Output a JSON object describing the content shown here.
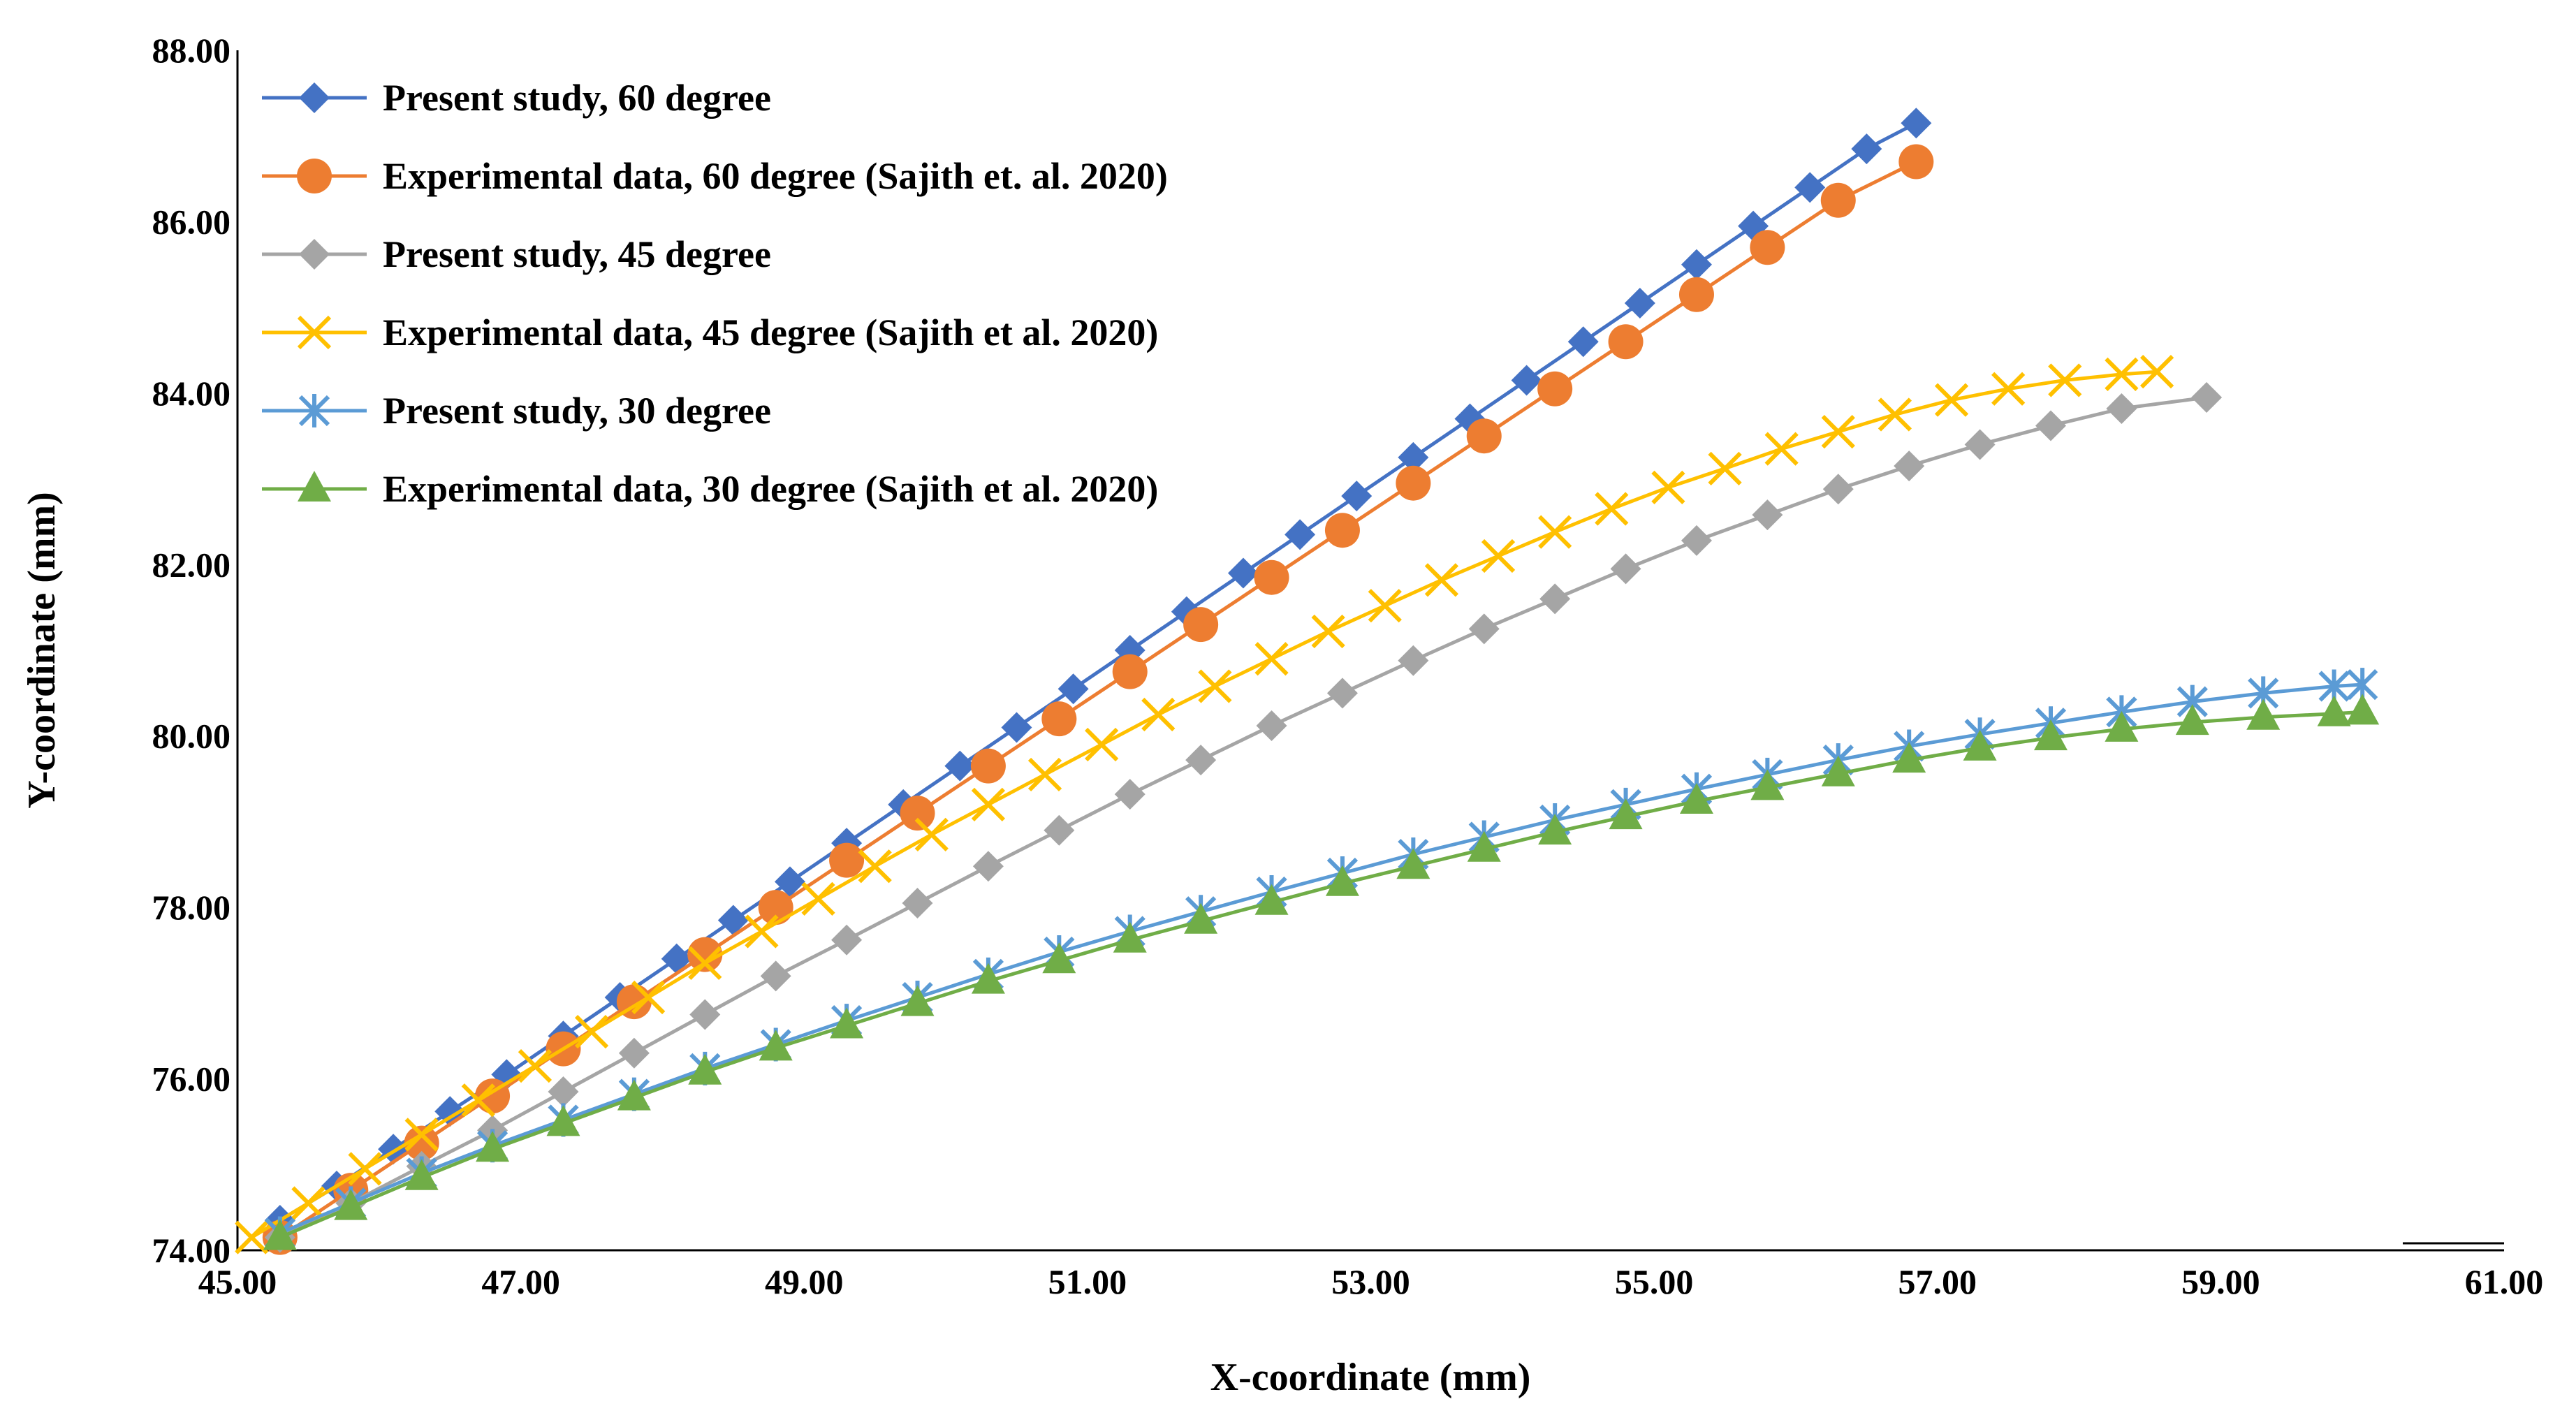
{
  "chart_data": {
    "type": "line",
    "title": "",
    "xlabel": "X-coordinate (mm)",
    "ylabel": "Y-coordinate (mm)",
    "xlim": [
      45,
      61
    ],
    "ylim": [
      74,
      88
    ],
    "xticks": [
      "45.00",
      "47.00",
      "49.00",
      "51.00",
      "53.00",
      "55.00",
      "57.00",
      "59.00",
      "61.00"
    ],
    "yticks": [
      "74.00",
      "76.00",
      "78.00",
      "80.00",
      "82.00",
      "84.00",
      "86.00",
      "88.00"
    ],
    "legend_position": "top-left",
    "grid": false,
    "series": [
      {
        "name": "Present study, 60 degree",
        "color": "#4472C4",
        "marker": "diamond",
        "x": [
          45.3,
          45.7,
          46.1,
          46.5,
          46.9,
          47.3,
          47.7,
          48.1,
          48.5,
          48.9,
          49.3,
          49.7,
          50.1,
          50.5,
          50.9,
          51.3,
          51.7,
          52.1,
          52.5,
          52.9,
          53.3,
          53.7,
          54.1,
          54.5,
          54.9,
          55.3,
          55.7,
          56.1,
          56.5,
          56.85
        ],
        "y": [
          74.35,
          74.75,
          75.18,
          75.62,
          76.05,
          76.5,
          76.95,
          77.4,
          77.85,
          78.3,
          78.75,
          79.2,
          79.65,
          80.1,
          80.55,
          81.0,
          81.45,
          81.9,
          82.35,
          82.8,
          83.25,
          83.7,
          84.15,
          84.6,
          85.05,
          85.5,
          85.95,
          86.4,
          86.85,
          87.15
        ]
      },
      {
        "name": "Experimental data, 60 degree (Sajith et. al. 2020)",
        "color": "#ED7D31",
        "marker": "circle",
        "x": [
          45.3,
          45.8,
          46.3,
          46.8,
          47.3,
          47.8,
          48.3,
          48.8,
          49.3,
          49.8,
          50.3,
          50.8,
          51.3,
          51.8,
          52.3,
          52.8,
          53.3,
          53.8,
          54.3,
          54.8,
          55.3,
          55.8,
          56.3,
          56.85
        ],
        "y": [
          74.15,
          74.7,
          75.25,
          75.8,
          76.35,
          76.9,
          77.45,
          78.0,
          78.55,
          79.1,
          79.65,
          80.2,
          80.75,
          81.3,
          81.85,
          82.4,
          82.95,
          83.5,
          84.05,
          84.6,
          85.15,
          85.7,
          86.25,
          86.7
        ]
      },
      {
        "name": "Present study, 45 degree",
        "color": "#A5A5A5",
        "marker": "diamond",
        "x": [
          45.3,
          45.8,
          46.3,
          46.8,
          47.3,
          47.8,
          48.3,
          48.8,
          49.3,
          49.8,
          50.3,
          50.8,
          51.3,
          51.8,
          52.3,
          52.8,
          53.3,
          53.8,
          54.3,
          54.8,
          55.3,
          55.8,
          56.3,
          56.8,
          57.3,
          57.8,
          58.3,
          58.9
        ],
        "y": [
          74.15,
          74.55,
          74.98,
          75.4,
          75.85,
          76.3,
          76.75,
          77.2,
          77.62,
          78.05,
          78.48,
          78.9,
          79.32,
          79.72,
          80.12,
          80.5,
          80.88,
          81.25,
          81.6,
          81.95,
          82.28,
          82.58,
          82.88,
          83.15,
          83.4,
          83.62,
          83.82,
          83.95
        ]
      },
      {
        "name": "Experimental data, 45 degree (Sajith et al. 2020)",
        "color": "#FFC000",
        "marker": "x",
        "x": [
          45.1,
          45.5,
          45.9,
          46.3,
          46.7,
          47.1,
          47.5,
          47.9,
          48.3,
          48.7,
          49.1,
          49.5,
          49.9,
          50.3,
          50.7,
          51.1,
          51.5,
          51.9,
          52.3,
          52.7,
          53.1,
          53.5,
          53.9,
          54.3,
          54.7,
          55.1,
          55.5,
          55.9,
          56.3,
          56.7,
          57.1,
          57.5,
          57.9,
          58.3,
          58.55
        ],
        "y": [
          74.15,
          74.55,
          74.95,
          75.35,
          75.75,
          76.15,
          76.55,
          76.95,
          77.35,
          77.72,
          78.1,
          78.48,
          78.85,
          79.2,
          79.55,
          79.9,
          80.25,
          80.58,
          80.9,
          81.22,
          81.52,
          81.82,
          82.1,
          82.38,
          82.65,
          82.9,
          83.12,
          83.35,
          83.55,
          83.75,
          83.92,
          84.05,
          84.15,
          84.22,
          84.25
        ]
      },
      {
        "name": "Present study, 30 degree",
        "color": "#5B9BD5",
        "marker": "asterisk",
        "x": [
          45.3,
          45.8,
          46.3,
          46.8,
          47.3,
          47.8,
          48.3,
          48.8,
          49.3,
          49.8,
          50.3,
          50.8,
          51.3,
          51.8,
          52.3,
          52.8,
          53.3,
          53.8,
          54.3,
          54.8,
          55.3,
          55.8,
          56.3,
          56.8,
          57.3,
          57.8,
          58.3,
          58.8,
          59.3,
          59.8,
          60.0
        ],
        "y": [
          74.2,
          74.55,
          74.9,
          75.22,
          75.52,
          75.82,
          76.12,
          76.4,
          76.68,
          76.95,
          77.22,
          77.48,
          77.72,
          77.95,
          78.18,
          78.4,
          78.62,
          78.82,
          79.02,
          79.2,
          79.38,
          79.55,
          79.72,
          79.88,
          80.02,
          80.15,
          80.28,
          80.4,
          80.5,
          80.58,
          80.6
        ]
      },
      {
        "name": "Experimental data, 30 degree (Sajith et al. 2020)",
        "color": "#70AD47",
        "marker": "triangle",
        "x": [
          45.3,
          45.8,
          46.3,
          46.8,
          47.3,
          47.8,
          48.3,
          48.8,
          49.3,
          49.8,
          50.3,
          50.8,
          51.3,
          51.8,
          52.3,
          52.8,
          53.3,
          53.8,
          54.3,
          54.8,
          55.3,
          55.8,
          56.3,
          56.8,
          57.3,
          57.8,
          58.3,
          58.8,
          59.3,
          59.8,
          60.0
        ],
        "y": [
          74.15,
          74.5,
          74.85,
          75.18,
          75.48,
          75.78,
          76.08,
          76.36,
          76.62,
          76.88,
          77.14,
          77.38,
          77.62,
          77.84,
          78.06,
          78.28,
          78.48,
          78.68,
          78.88,
          79.06,
          79.24,
          79.4,
          79.56,
          79.72,
          79.86,
          79.98,
          80.08,
          80.16,
          80.22,
          80.26,
          80.28
        ]
      }
    ]
  }
}
